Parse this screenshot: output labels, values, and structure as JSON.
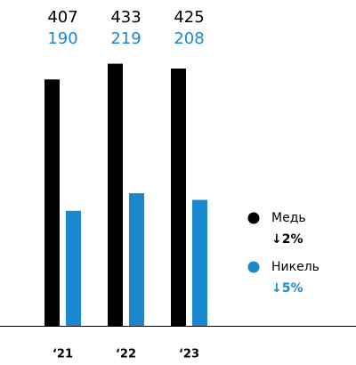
{
  "chart_data": {
    "type": "bar",
    "categories": [
      "‘21",
      "‘22",
      "‘23"
    ],
    "series": [
      {
        "name": "Медь",
        "color": "#000000",
        "values": [
          407,
          433,
          425
        ],
        "change": "↓2%"
      },
      {
        "name": "Никель",
        "color": "#1a88d1",
        "values": [
          190,
          219,
          208
        ],
        "change": "↓5%"
      }
    ]
  }
}
